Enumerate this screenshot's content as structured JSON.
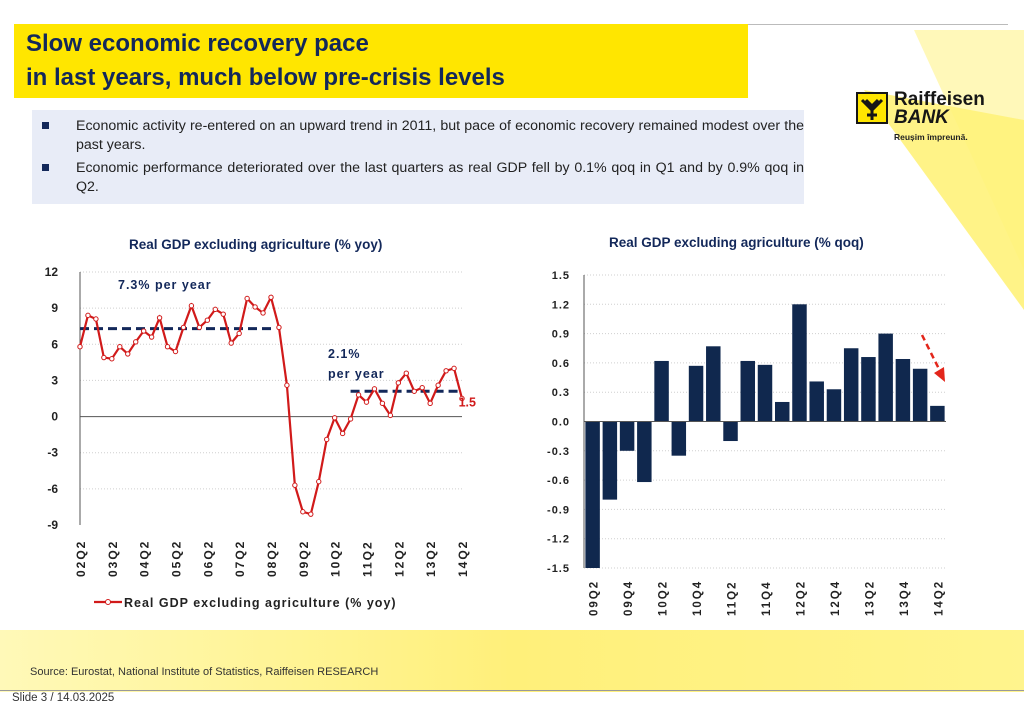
{
  "title": {
    "line1": "Slow economic recovery pace",
    "line2": "in last years, much below pre-crisis levels"
  },
  "logo": {
    "name_line1": "Raiffeisen",
    "name_line2": "BANK",
    "tagline": "Reușim împreună."
  },
  "bullets": [
    "Economic activity re-entered on an upward trend in 2011, but pace of economic recovery remained modest over the past years.",
    "Economic performance deteriorated over the last quarters as real GDP fell by 0.1% qoq in Q1 and by 0.9% qoq in Q2."
  ],
  "colors": {
    "brand_yellow": "#ffe600",
    "navy": "#13285a",
    "line_red": "#d11a1a",
    "bar_navy": "#10284e",
    "arrow_red": "#e3261b"
  },
  "chart_data": [
    {
      "type": "line",
      "title": "Real GDP excluding agriculture (% yoy)",
      "legend": "Real GDP excluding agriculture (% yoy)",
      "ylim": [
        -9,
        12
      ],
      "yticks": [
        "12",
        "9",
        "6",
        "3",
        "0",
        "-3",
        "-6",
        "-9"
      ],
      "xtick_labels": [
        "02Q2",
        "03Q2",
        "04Q2",
        "05Q2",
        "06Q2",
        "07Q2",
        "08Q2",
        "09Q2",
        "10Q2",
        "11Q2",
        "12Q2",
        "13Q2",
        "14Q2"
      ],
      "values": [
        5.8,
        8.4,
        8.1,
        4.9,
        4.8,
        5.8,
        5.2,
        6.2,
        7.1,
        6.6,
        8.2,
        5.8,
        5.4,
        7.4,
        9.2,
        7.4,
        8.0,
        8.9,
        8.5,
        6.1,
        6.9,
        9.8,
        9.1,
        8.6,
        9.9,
        7.4,
        2.6,
        -5.7,
        -7.9,
        -8.1,
        -5.4,
        -1.9,
        -0.1,
        -1.4,
        -0.2,
        1.8,
        1.2,
        2.3,
        1.1,
        0.1,
        2.8,
        3.6,
        2.1,
        2.4,
        1.1,
        2.6,
        3.8,
        4.0,
        1.5
      ],
      "averages": [
        {
          "label": "7.3% per year",
          "value": 7.3
        },
        {
          "label_line1": "2.1%",
          "label_line2": "per year",
          "value": 2.1
        }
      ],
      "last_value_label": "1.5"
    },
    {
      "type": "bar",
      "title": "Real GDP excluding agriculture (% qoq)",
      "ylim": [
        -1.5,
        1.5
      ],
      "yticks": [
        "1.5",
        "1.2",
        "0.9",
        "0.6",
        "0.3",
        "0.0",
        "-0.3",
        "-0.6",
        "-0.9",
        "-1.2",
        "-1.5"
      ],
      "categories": [
        "09Q2",
        "09Q3",
        "09Q4",
        "10Q1",
        "10Q2",
        "10Q3",
        "10Q4",
        "11Q1",
        "11Q2",
        "11Q3",
        "11Q4",
        "12Q1",
        "12Q2",
        "12Q3",
        "12Q4",
        "13Q1",
        "13Q2",
        "13Q3",
        "13Q4",
        "14Q1",
        "14Q2"
      ],
      "xtick_labels": [
        "09Q2",
        "09Q4",
        "10Q2",
        "10Q4",
        "11Q2",
        "11Q4",
        "12Q2",
        "12Q4",
        "13Q2",
        "13Q4",
        "14Q2"
      ],
      "values": [
        -1.5,
        -0.8,
        -0.3,
        -0.62,
        0.62,
        -0.35,
        0.57,
        0.77,
        -0.2,
        0.62,
        0.58,
        0.2,
        1.2,
        0.41,
        0.33,
        0.75,
        0.66,
        0.9,
        0.64,
        0.54,
        0.16
      ]
    }
  ],
  "footer": {
    "source": "Source: Eurostat, National Institute of Statistics, Raiffeisen RESEARCH",
    "slide": "Slide 3 / 14.03.2025"
  }
}
